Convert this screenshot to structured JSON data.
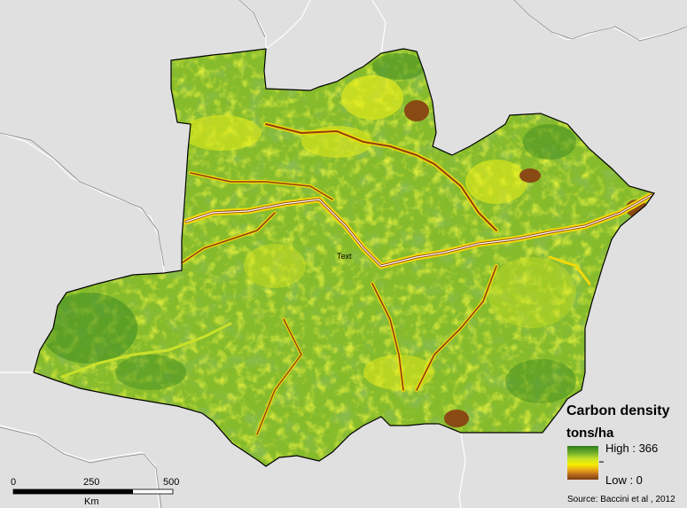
{
  "map": {
    "place_label": "Text"
  },
  "legend": {
    "title_line1": "Carbon density",
    "title_line2": "tons/ha",
    "high_label": "High : 366",
    "low_label": "Low : 0",
    "colors": [
      "#2e7d1e",
      "#6fae2a",
      "#c9e12a",
      "#f4f000",
      "#e8a41a",
      "#b5651d",
      "#7a3d10"
    ]
  },
  "scale_bar": {
    "tick_0": "0",
    "tick_1": "250",
    "tick_2": "500",
    "unit": "Km"
  },
  "source": "Source: Baccini et al , 2012"
}
